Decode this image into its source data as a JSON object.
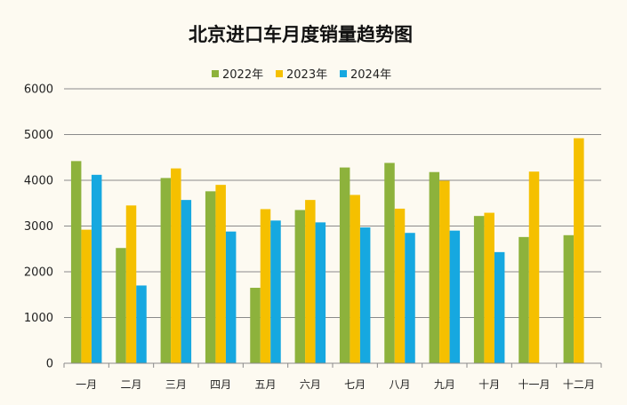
{
  "chart_data": {
    "type": "bar",
    "title": "北京进口车月度销量趋势图",
    "xlabel": "",
    "ylabel": "",
    "ylim": [
      0,
      6000
    ],
    "yticks": [
      0,
      1000,
      2000,
      3000,
      4000,
      5000,
      6000
    ],
    "grid": true,
    "legend_position": "top",
    "categories": [
      "一月",
      "二月",
      "三月",
      "四月",
      "五月",
      "六月",
      "七月",
      "八月",
      "九月",
      "十月",
      "十一月",
      "十二月"
    ],
    "series": [
      {
        "name": "2022年",
        "color": "#8db23c",
        "values": [
          4420,
          2520,
          4050,
          3760,
          1650,
          3350,
          4280,
          4380,
          4180,
          3220,
          2760,
          2800
        ]
      },
      {
        "name": "2023年",
        "color": "#f5c000",
        "values": [
          2920,
          3450,
          4260,
          3900,
          3370,
          3570,
          3680,
          3380,
          3990,
          3290,
          4190,
          4920
        ]
      },
      {
        "name": "2024年",
        "color": "#16a8e0",
        "values": [
          4120,
          1700,
          3570,
          2880,
          3120,
          3080,
          2970,
          2850,
          2900,
          2430,
          null,
          null
        ]
      }
    ]
  }
}
